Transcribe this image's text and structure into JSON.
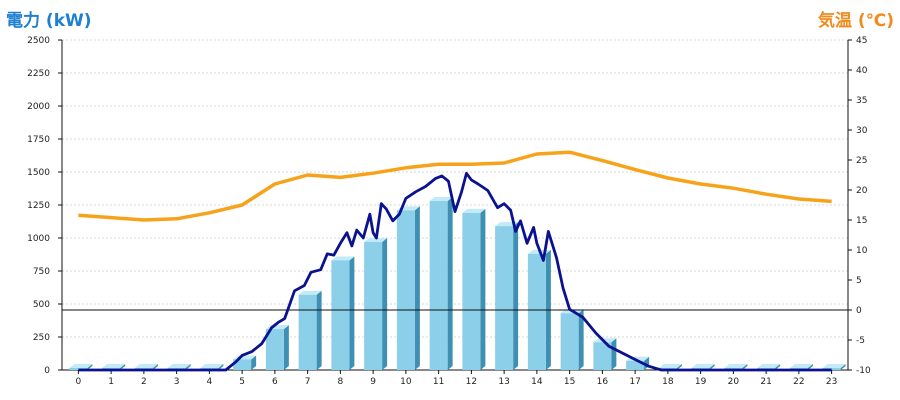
{
  "titles": {
    "left_axis": "電力 (kW)",
    "right_axis": "気温 (℃)"
  },
  "colors": {
    "left_title": "#1f7fd0",
    "right_title": "#f28a1e",
    "bar_front": "#8ccfe9",
    "bar_side": "#3e8fb1",
    "bar_top": "#c3eaf8",
    "power_line": "#0b128f",
    "temp_line": "#f7a21b",
    "grid": "#d7d7d7",
    "axis": "#111111"
  },
  "chart_data": {
    "type": "bar",
    "categories": [
      "0",
      "1",
      "2",
      "3",
      "4",
      "5",
      "6",
      "7",
      "8",
      "9",
      "10",
      "11",
      "12",
      "13",
      "14",
      "15",
      "16",
      "17",
      "18",
      "19",
      "20",
      "21",
      "22",
      "23"
    ],
    "left_axis": {
      "label": "電力 (kW)",
      "ylim": [
        0,
        2500
      ],
      "ticks": [
        0,
        250,
        500,
        750,
        1000,
        1250,
        1500,
        1750,
        2000,
        2250,
        2500
      ]
    },
    "right_axis": {
      "label": "気温 (℃)",
      "ylim": [
        -10,
        45
      ],
      "ticks": [
        -10,
        -5,
        0,
        5,
        10,
        15,
        20,
        25,
        30,
        35,
        40,
        45
      ]
    },
    "grid": true,
    "reference_line": {
      "axis": "right",
      "value": 0
    },
    "series": [
      {
        "type": "bar",
        "axis": "left",
        "values": [
          0,
          0,
          0,
          0,
          0,
          80,
          310,
          570,
          830,
          970,
          1210,
          1280,
          1190,
          1090,
          880,
          430,
          210,
          70,
          0,
          0,
          0,
          0,
          0,
          0
        ]
      },
      {
        "type": "line",
        "axis": "left",
        "x": [
          0,
          4.5,
          4.8,
          5.0,
          5.3,
          5.6,
          5.9,
          6.1,
          6.3,
          6.6,
          6.9,
          7.1,
          7.4,
          7.6,
          7.8,
          8.0,
          8.2,
          8.35,
          8.5,
          8.7,
          8.9,
          9.0,
          9.1,
          9.25,
          9.4,
          9.6,
          9.8,
          10.0,
          10.3,
          10.6,
          10.9,
          11.1,
          11.3,
          11.5,
          11.7,
          11.85,
          12.0,
          12.2,
          12.5,
          12.8,
          13.0,
          13.2,
          13.35,
          13.5,
          13.7,
          13.9,
          14.0,
          14.2,
          14.35,
          14.6,
          14.8,
          15.0,
          15.4,
          15.8,
          16.2,
          16.6,
          17.0,
          17.4,
          17.8,
          18.0,
          23
        ],
        "values": [
          0,
          0,
          60,
          110,
          140,
          200,
          320,
          360,
          390,
          600,
          640,
          740,
          760,
          880,
          870,
          960,
          1040,
          940,
          1060,
          1000,
          1180,
          1040,
          1000,
          1260,
          1220,
          1130,
          1180,
          1300,
          1350,
          1390,
          1450,
          1470,
          1430,
          1200,
          1350,
          1490,
          1440,
          1410,
          1360,
          1230,
          1260,
          1210,
          1050,
          1130,
          960,
          1080,
          960,
          830,
          1050,
          850,
          620,
          460,
          400,
          280,
          180,
          130,
          80,
          30,
          0,
          0,
          0
        ],
        "units": "kW"
      },
      {
        "type": "line",
        "axis": "right",
        "x": [
          0,
          1,
          2,
          3,
          4,
          5,
          6,
          7,
          8,
          9,
          10,
          11,
          12,
          13,
          14,
          15,
          16,
          17,
          18,
          19,
          20,
          21,
          22,
          23
        ],
        "values": [
          15.8,
          15.4,
          15.0,
          15.2,
          16.2,
          17.5,
          21.0,
          22.5,
          22.1,
          22.8,
          23.7,
          24.3,
          24.3,
          24.5,
          26.0,
          26.3,
          24.9,
          23.4,
          22.0,
          21.0,
          20.3,
          19.3,
          18.5,
          18.1
        ],
        "units": "℃"
      }
    ]
  }
}
